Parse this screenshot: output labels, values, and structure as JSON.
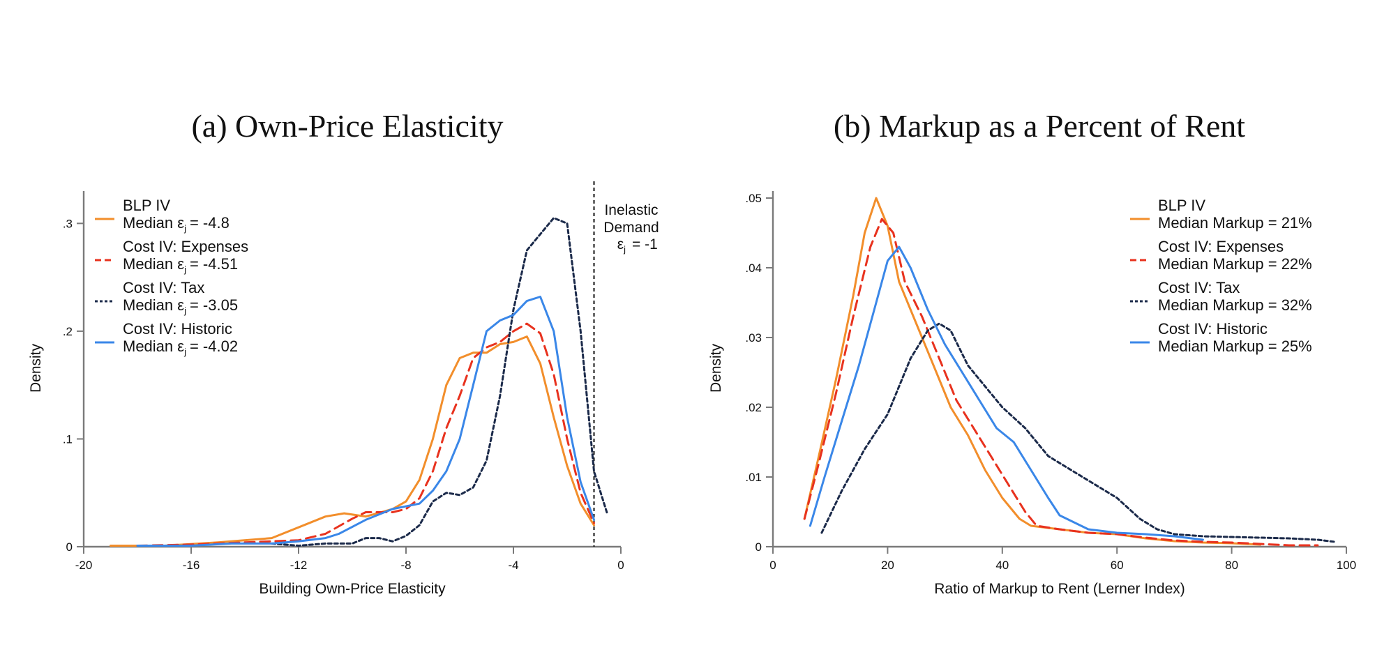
{
  "chart_data": [
    {
      "type": "line",
      "title": "(a) Own-Price Elasticity",
      "xlabel": "Building Own-Price Elasticity",
      "ylabel": "Density",
      "xlim": [
        -20,
        0
      ],
      "ylim": [
        0,
        0.33
      ],
      "x_ticks": [
        -20,
        -16,
        -12,
        -8,
        -4,
        0
      ],
      "x_tick_labels": [
        "-20",
        "-16",
        "-12",
        "-8",
        "-4",
        "0"
      ],
      "y_ticks": [
        0,
        0.1,
        0.2,
        0.3
      ],
      "y_tick_labels": [
        "0",
        ".1",
        ".2",
        ".3"
      ],
      "grid": false,
      "legend_position": "top-left",
      "reference_line": {
        "x": -1,
        "style": "dotted"
      },
      "annotation": {
        "lines": [
          "Inelastic",
          "Demand",
          "ε",
          "= -1"
        ]
      },
      "series": [
        {
          "name": "BLP IV",
          "sub_label": [
            "Median ε",
            "= -4.8"
          ],
          "color": "#F28E2B",
          "dash": "solid",
          "x": [
            -19,
            -17,
            -15,
            -13,
            -12,
            -11,
            -10.3,
            -9.5,
            -8.5,
            -8,
            -7.5,
            -7,
            -6.5,
            -6,
            -5.5,
            -5,
            -4.5,
            -4,
            -3.5,
            -3,
            -2.5,
            -2,
            -1.5,
            -1
          ],
          "y": [
            0.001,
            0.001,
            0.004,
            0.008,
            0.018,
            0.028,
            0.031,
            0.028,
            0.035,
            0.042,
            0.062,
            0.1,
            0.15,
            0.175,
            0.18,
            0.18,
            0.188,
            0.19,
            0.195,
            0.17,
            0.12,
            0.075,
            0.04,
            0.02
          ]
        },
        {
          "name": "Cost IV: Expenses",
          "sub_label": [
            "Median ε",
            "= -4.51"
          ],
          "color": "#E8321E",
          "dash": "dashed",
          "x": [
            -18,
            -16,
            -14,
            -12,
            -11,
            -10,
            -9.5,
            -8.5,
            -8,
            -7.5,
            -7,
            -6.5,
            -6,
            -5.5,
            -5,
            -4.5,
            -4,
            -3.5,
            -3,
            -2.5,
            -2,
            -1.5,
            -1
          ],
          "y": [
            0.001,
            0.002,
            0.004,
            0.006,
            0.012,
            0.026,
            0.032,
            0.032,
            0.035,
            0.045,
            0.07,
            0.11,
            0.14,
            0.175,
            0.185,
            0.19,
            0.2,
            0.207,
            0.198,
            0.16,
            0.1,
            0.05,
            0.022
          ]
        },
        {
          "name": "Cost IV: Tax",
          "sub_label": [
            "Median ε",
            "= -3.05"
          ],
          "color": "#1B2A4A",
          "dash": "dotted",
          "x": [
            -13,
            -12,
            -11,
            -10,
            -9.5,
            -9,
            -8.5,
            -8,
            -7.5,
            -7,
            -6.5,
            -6,
            -5.5,
            -5,
            -4.5,
            -4,
            -3.5,
            -3,
            -2.5,
            -2,
            -1.5,
            -1,
            -0.5
          ],
          "y": [
            0.003,
            0.001,
            0.003,
            0.003,
            0.008,
            0.008,
            0.005,
            0.01,
            0.02,
            0.042,
            0.05,
            0.048,
            0.055,
            0.08,
            0.14,
            0.22,
            0.275,
            0.29,
            0.305,
            0.3,
            0.2,
            0.07,
            0.03
          ]
        },
        {
          "name": "Cost IV: Historic",
          "sub_label": [
            "Median ε",
            "= -4.02"
          ],
          "color": "#3A87E8",
          "dash": "solid",
          "x": [
            -18,
            -16,
            -14.5,
            -13,
            -12,
            -11,
            -10.5,
            -9.5,
            -8.5,
            -7.5,
            -7,
            -6.5,
            -6,
            -5.5,
            -5,
            -4.5,
            -4,
            -3.5,
            -3,
            -2.5,
            -2,
            -1.5,
            -1
          ],
          "y": [
            0.001,
            0.001,
            0.003,
            0.003,
            0.005,
            0.008,
            0.012,
            0.025,
            0.035,
            0.04,
            0.052,
            0.07,
            0.1,
            0.15,
            0.2,
            0.21,
            0.215,
            0.228,
            0.232,
            0.2,
            0.12,
            0.06,
            0.025
          ]
        }
      ]
    },
    {
      "type": "line",
      "title": "(b) Markup as a Percent of Rent",
      "xlabel": "Ratio of Markup to Rent (Lerner Index)",
      "ylabel": "Density",
      "xlim": [
        0,
        100
      ],
      "ylim": [
        0,
        0.051
      ],
      "x_ticks": [
        0,
        20,
        40,
        60,
        80,
        100
      ],
      "x_tick_labels": [
        "0",
        "20",
        "40",
        "60",
        "80",
        "100"
      ],
      "y_ticks": [
        0,
        0.01,
        0.02,
        0.03,
        0.04,
        0.05
      ],
      "y_tick_labels": [
        "0",
        ".01",
        ".02",
        ".03",
        ".04",
        ".05"
      ],
      "grid": false,
      "legend_position": "top-right",
      "series": [
        {
          "name": "BLP IV",
          "sub_label": "Median Markup = 21%",
          "color": "#F28E2B",
          "dash": "solid",
          "x": [
            5.5,
            8,
            11,
            14,
            16,
            18,
            20,
            22,
            25,
            28,
            31,
            34,
            37,
            40,
            43,
            45,
            50,
            55,
            60,
            65,
            70,
            75,
            80,
            85
          ],
          "y": [
            0.004,
            0.013,
            0.024,
            0.036,
            0.045,
            0.05,
            0.046,
            0.038,
            0.032,
            0.026,
            0.02,
            0.016,
            0.011,
            0.007,
            0.004,
            0.003,
            0.0025,
            0.002,
            0.0018,
            0.0012,
            0.0008,
            0.0006,
            0.0005,
            0.0003
          ]
        },
        {
          "name": "Cost IV: Expenses",
          "sub_label": "Median Markup = 22%",
          "color": "#E8321E",
          "dash": "dashed",
          "x": [
            5.5,
            8,
            11,
            14,
            17,
            19,
            21,
            23,
            26,
            29,
            32,
            35,
            38,
            41,
            44,
            46,
            50,
            55,
            60,
            65,
            70,
            75,
            80,
            85,
            90,
            95
          ],
          "y": [
            0.004,
            0.012,
            0.022,
            0.033,
            0.043,
            0.047,
            0.045,
            0.038,
            0.033,
            0.027,
            0.021,
            0.017,
            0.013,
            0.009,
            0.005,
            0.003,
            0.0025,
            0.002,
            0.0018,
            0.0013,
            0.0009,
            0.0007,
            0.0006,
            0.0004,
            0.0002,
            0.0002
          ]
        },
        {
          "name": "Cost IV: Tax",
          "sub_label": "Median Markup = 32%",
          "color": "#1B2A4A",
          "dash": "dotted",
          "x": [
            8.5,
            12,
            16,
            20,
            24,
            27,
            29,
            31,
            34,
            37,
            40,
            44,
            48,
            52,
            56,
            60,
            64,
            67,
            70,
            75,
            80,
            85,
            90,
            95,
            98
          ],
          "y": [
            0.002,
            0.008,
            0.014,
            0.019,
            0.027,
            0.031,
            0.032,
            0.031,
            0.026,
            0.023,
            0.02,
            0.017,
            0.013,
            0.011,
            0.009,
            0.007,
            0.004,
            0.0025,
            0.0018,
            0.0015,
            0.0014,
            0.0013,
            0.0012,
            0.001,
            0.0007
          ]
        },
        {
          "name": "Cost IV: Historic",
          "sub_label": "Median Markup = 25%",
          "color": "#3A87E8",
          "dash": "solid",
          "x": [
            6.5,
            9,
            12,
            15,
            18,
            20,
            22,
            24,
            27,
            30,
            33,
            36,
            39,
            42,
            45,
            48,
            50,
            55,
            60,
            65,
            70,
            75
          ],
          "y": [
            0.003,
            0.01,
            0.018,
            0.026,
            0.035,
            0.041,
            0.043,
            0.04,
            0.034,
            0.029,
            0.025,
            0.021,
            0.017,
            0.015,
            0.011,
            0.007,
            0.0045,
            0.0025,
            0.002,
            0.0018,
            0.0015,
            0.001
          ]
        }
      ]
    }
  ]
}
